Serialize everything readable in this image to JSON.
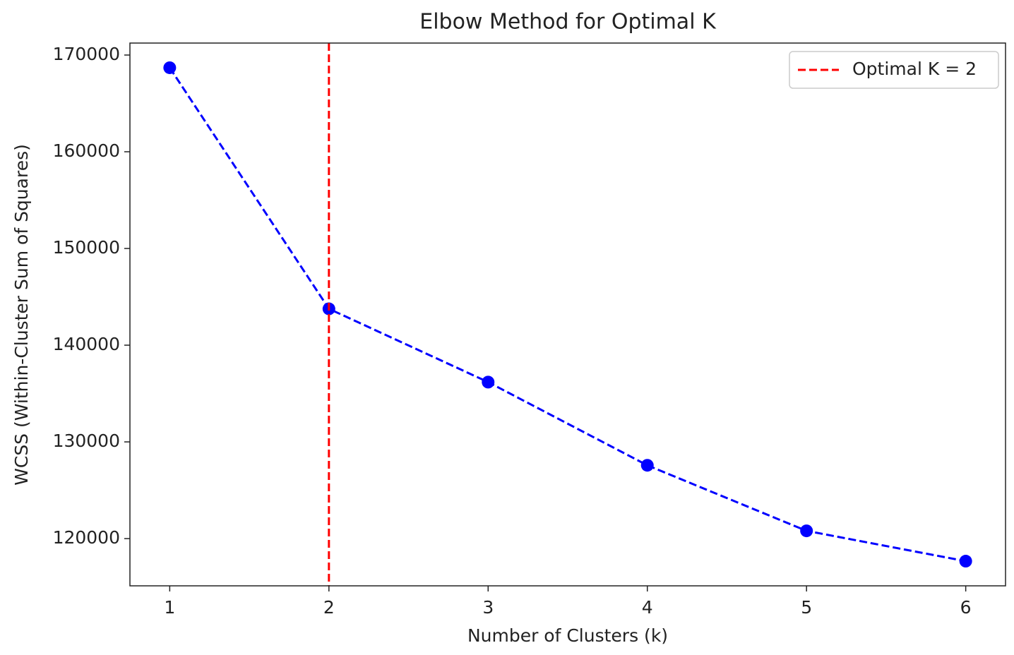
{
  "chart_data": {
    "type": "line",
    "title": "Elbow Method for Optimal K",
    "x_label": "Number of Clusters (k)",
    "y_label": "WCSS (Within-Cluster Sum of Squares)",
    "x": [
      1,
      2,
      3,
      4,
      5,
      6
    ],
    "values": [
      168688,
      143761,
      136181,
      127580,
      120802,
      117668
    ],
    "color": "#0000ff",
    "linestyle": "dashed",
    "marker": "circle",
    "xlim": [
      0.75,
      6.25
    ],
    "xticks": [
      1,
      2,
      3,
      4,
      5,
      6
    ],
    "ylim": [
      115117,
      171239
    ],
    "yticks": [
      120000,
      130000,
      140000,
      150000,
      160000,
      170000
    ],
    "vline": {
      "x": 2,
      "color": "#ff0000",
      "label": "Optimal K = 2"
    },
    "legend": "upper right",
    "grid": false
  }
}
